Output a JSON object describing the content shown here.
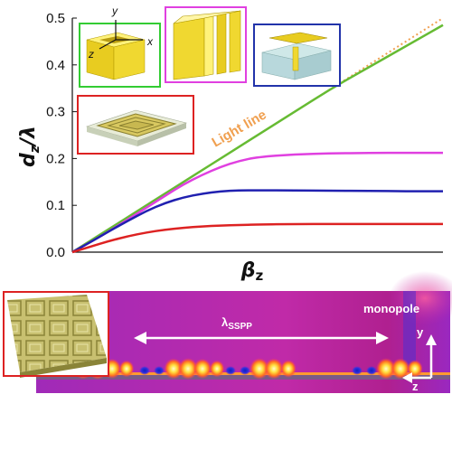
{
  "chart_data": {
    "type": "line",
    "title": "",
    "xlabel": "β",
    "xlabel_sub": "z",
    "ylabel": "d",
    "ylabel_sub": "z",
    "ylabel_suffix": "/λ",
    "ylim": [
      0,
      0.5
    ],
    "yticks": [
      "0.0",
      "0.1",
      "0.2",
      "0.3",
      "0.4",
      "0.5"
    ],
    "x": [
      0,
      0.05,
      0.1,
      0.15,
      0.2,
      0.25,
      0.3,
      0.35,
      0.4,
      0.45,
      0.5,
      0.6,
      0.7,
      0.8,
      0.9,
      1.0
    ],
    "series": [
      {
        "name": "Light line",
        "color": "#f0a050",
        "style": "dotted",
        "values": [
          0,
          0.025,
          0.05,
          0.075,
          0.1,
          0.125,
          0.15,
          0.175,
          0.2,
          0.225,
          0.25,
          0.3,
          0.35,
          0.4,
          0.45,
          0.5
        ]
      },
      {
        "color": "#66bb33",
        "values": [
          0,
          0.025,
          0.05,
          0.075,
          0.1,
          0.125,
          0.15,
          0.175,
          0.2,
          0.225,
          0.25,
          0.3,
          0.35,
          0.395,
          0.44,
          0.485
        ]
      },
      {
        "color": "#e040e0",
        "values": [
          0,
          0.022,
          0.045,
          0.07,
          0.095,
          0.12,
          0.145,
          0.165,
          0.182,
          0.195,
          0.203,
          0.209,
          0.211,
          0.212,
          0.212,
          0.212
        ]
      },
      {
        "color": "#2020b0",
        "values": [
          0,
          0.022,
          0.045,
          0.067,
          0.088,
          0.105,
          0.117,
          0.125,
          0.13,
          0.132,
          0.132,
          0.132,
          0.131,
          0.131,
          0.13,
          0.13
        ]
      },
      {
        "color": "#dd2222",
        "values": [
          0,
          0.012,
          0.024,
          0.034,
          0.042,
          0.048,
          0.052,
          0.055,
          0.057,
          0.058,
          0.059,
          0.06,
          0.06,
          0.06,
          0.06,
          0.06
        ]
      }
    ]
  },
  "annotations": {
    "light_line": "Light line",
    "inset_axis_y": "y",
    "inset_axis_x": "x",
    "inset_axis_z": "z"
  },
  "insets": {
    "green": "#33cc33",
    "magenta": "#e040e0",
    "blue": "#2233aa",
    "red": "#dd2222"
  },
  "field_map": {
    "wavelength_label": "λ",
    "wavelength_sub": "SSPP",
    "source_label": "monopole",
    "axis_y": "y",
    "axis_z": "z"
  }
}
